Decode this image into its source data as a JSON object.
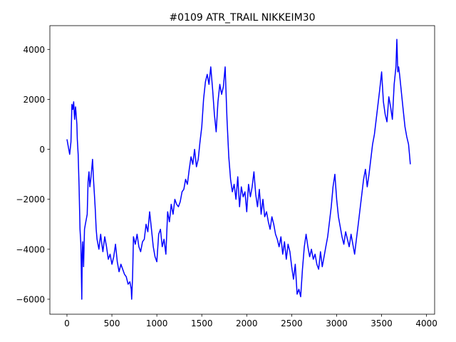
{
  "chart_data": {
    "type": "line",
    "title": "#0109 ATR_TRAIL NIKKEIM30",
    "xlabel": "",
    "ylabel": "",
    "xlim": [
      -190,
      4090
    ],
    "ylim": [
      -6600,
      4950
    ],
    "xticks": [
      0,
      500,
      1000,
      1500,
      2000,
      2500,
      3000,
      3500,
      4000
    ],
    "xtick_labels": [
      "0",
      "500",
      "1000",
      "1500",
      "2000",
      "2500",
      "3000",
      "3500",
      "4000"
    ],
    "yticks": [
      -6000,
      -4000,
      -2000,
      0,
      2000,
      4000
    ],
    "ytick_labels": [
      "−6000",
      "−4000",
      "−2000",
      "0",
      "2000",
      "4000"
    ],
    "grid": false,
    "series": [
      {
        "color": "#0000ff",
        "x": [
          0,
          15,
          30,
          45,
          55,
          65,
          75,
          85,
          95,
          100,
          110,
          115,
          125,
          135,
          145,
          155,
          165,
          170,
          175,
          180,
          185,
          195,
          205,
          215,
          225,
          235,
          245,
          255,
          265,
          275,
          285,
          295,
          305,
          315,
          325,
          335,
          345,
          355,
          365,
          375,
          385,
          400,
          420,
          440,
          460,
          480,
          500,
          520,
          540,
          560,
          580,
          600,
          620,
          640,
          660,
          680,
          700,
          715,
          720,
          730,
          740,
          760,
          780,
          800,
          820,
          840,
          860,
          880,
          900,
          920,
          940,
          960,
          980,
          1000,
          1020,
          1040,
          1060,
          1080,
          1100,
          1120,
          1140,
          1160,
          1180,
          1200,
          1220,
          1240,
          1260,
          1280,
          1300,
          1320,
          1340,
          1360,
          1380,
          1400,
          1420,
          1440,
          1460,
          1480,
          1500,
          1520,
          1540,
          1560,
          1580,
          1600,
          1620,
          1640,
          1660,
          1680,
          1700,
          1720,
          1740,
          1760,
          1780,
          1800,
          1820,
          1840,
          1860,
          1880,
          1900,
          1920,
          1940,
          1960,
          1980,
          2000,
          2020,
          2040,
          2060,
          2080,
          2100,
          2120,
          2140,
          2160,
          2180,
          2200,
          2220,
          2240,
          2260,
          2280,
          2300,
          2320,
          2340,
          2360,
          2380,
          2400,
          2420,
          2440,
          2460,
          2480,
          2500,
          2520,
          2540,
          2560,
          2580,
          2600,
          2620,
          2640,
          2660,
          2680,
          2700,
          2720,
          2740,
          2760,
          2780,
          2800,
          2820,
          2840,
          2860,
          2880,
          2900,
          2920,
          2940,
          2960,
          2980,
          3000,
          3020,
          3040,
          3060,
          3080,
          3100,
          3120,
          3140,
          3160,
          3180,
          3200,
          3220,
          3240,
          3260,
          3280,
          3300,
          3320,
          3340,
          3360,
          3380,
          3400,
          3420,
          3440,
          3460,
          3480,
          3500,
          3520,
          3540,
          3560,
          3580,
          3600,
          3620,
          3640,
          3660,
          3670,
          3680,
          3690,
          3700,
          3720,
          3740,
          3760,
          3780,
          3800,
          3810,
          3820
        ],
        "y": [
          400,
          100,
          -200,
          300,
          1800,
          1600,
          1900,
          1200,
          1700,
          1500,
          1000,
          400,
          -200,
          -1500,
          -3200,
          -3800,
          -6000,
          -4200,
          -3700,
          -4200,
          -4700,
          -3200,
          -3000,
          -2800,
          -2600,
          -1300,
          -900,
          -1500,
          -1200,
          -800,
          -400,
          -1200,
          -1800,
          -2400,
          -3200,
          -3600,
          -3800,
          -4000,
          -3700,
          -3400,
          -3700,
          -4100,
          -3500,
          -3900,
          -4400,
          -4200,
          -4600,
          -4300,
          -3800,
          -4500,
          -4900,
          -4600,
          -4800,
          -5000,
          -5100,
          -5400,
          -5300,
          -5600,
          -6000,
          -5100,
          -3500,
          -3800,
          -3400,
          -3900,
          -4100,
          -3700,
          -3600,
          -3000,
          -3300,
          -2500,
          -3200,
          -3900,
          -4300,
          -4500,
          -3400,
          -3200,
          -3900,
          -3600,
          -4200,
          -2500,
          -2900,
          -2200,
          -2600,
          -2000,
          -2200,
          -2300,
          -2100,
          -1700,
          -1600,
          -1200,
          -1400,
          -800,
          -300,
          -600,
          0,
          -700,
          -400,
          300,
          900,
          2000,
          2700,
          3000,
          2600,
          3300,
          2400,
          1400,
          700,
          1900,
          2600,
          2200,
          2500,
          3300,
          1200,
          -300,
          -1200,
          -1700,
          -1400,
          -2000,
          -1100,
          -2300,
          -1500,
          -1900,
          -1700,
          -2500,
          -1400,
          -1900,
          -1500,
          -900,
          -1800,
          -2300,
          -1600,
          -2600,
          -2000,
          -2700,
          -2500,
          -2900,
          -3200,
          -2700,
          -3000,
          -3400,
          -3600,
          -3900,
          -3500,
          -4200,
          -3700,
          -4400,
          -3800,
          -4100,
          -4700,
          -5200,
          -4600,
          -5800,
          -5600,
          -5900,
          -4800,
          -3900,
          -3400,
          -3900,
          -4300,
          -4000,
          -4400,
          -4200,
          -4600,
          -4800,
          -4100,
          -4700,
          -4300,
          -3900,
          -3500,
          -2900,
          -2300,
          -1500,
          -1000,
          -2000,
          -2700,
          -3100,
          -3500,
          -3800,
          -3300,
          -3600,
          -3900,
          -3400,
          -3800,
          -4200,
          -3600,
          -3000,
          -2400,
          -1800,
          -1200,
          -800,
          -1500,
          -1000,
          -400,
          200,
          600,
          1200,
          1800,
          2400,
          3100,
          1900,
          1400,
          1100,
          2100,
          1700,
          1200,
          2600,
          3300,
          4400,
          3100,
          3300,
          3000,
          2300,
          1600,
          900,
          500,
          200,
          -200,
          -600
        ]
      }
    ]
  }
}
